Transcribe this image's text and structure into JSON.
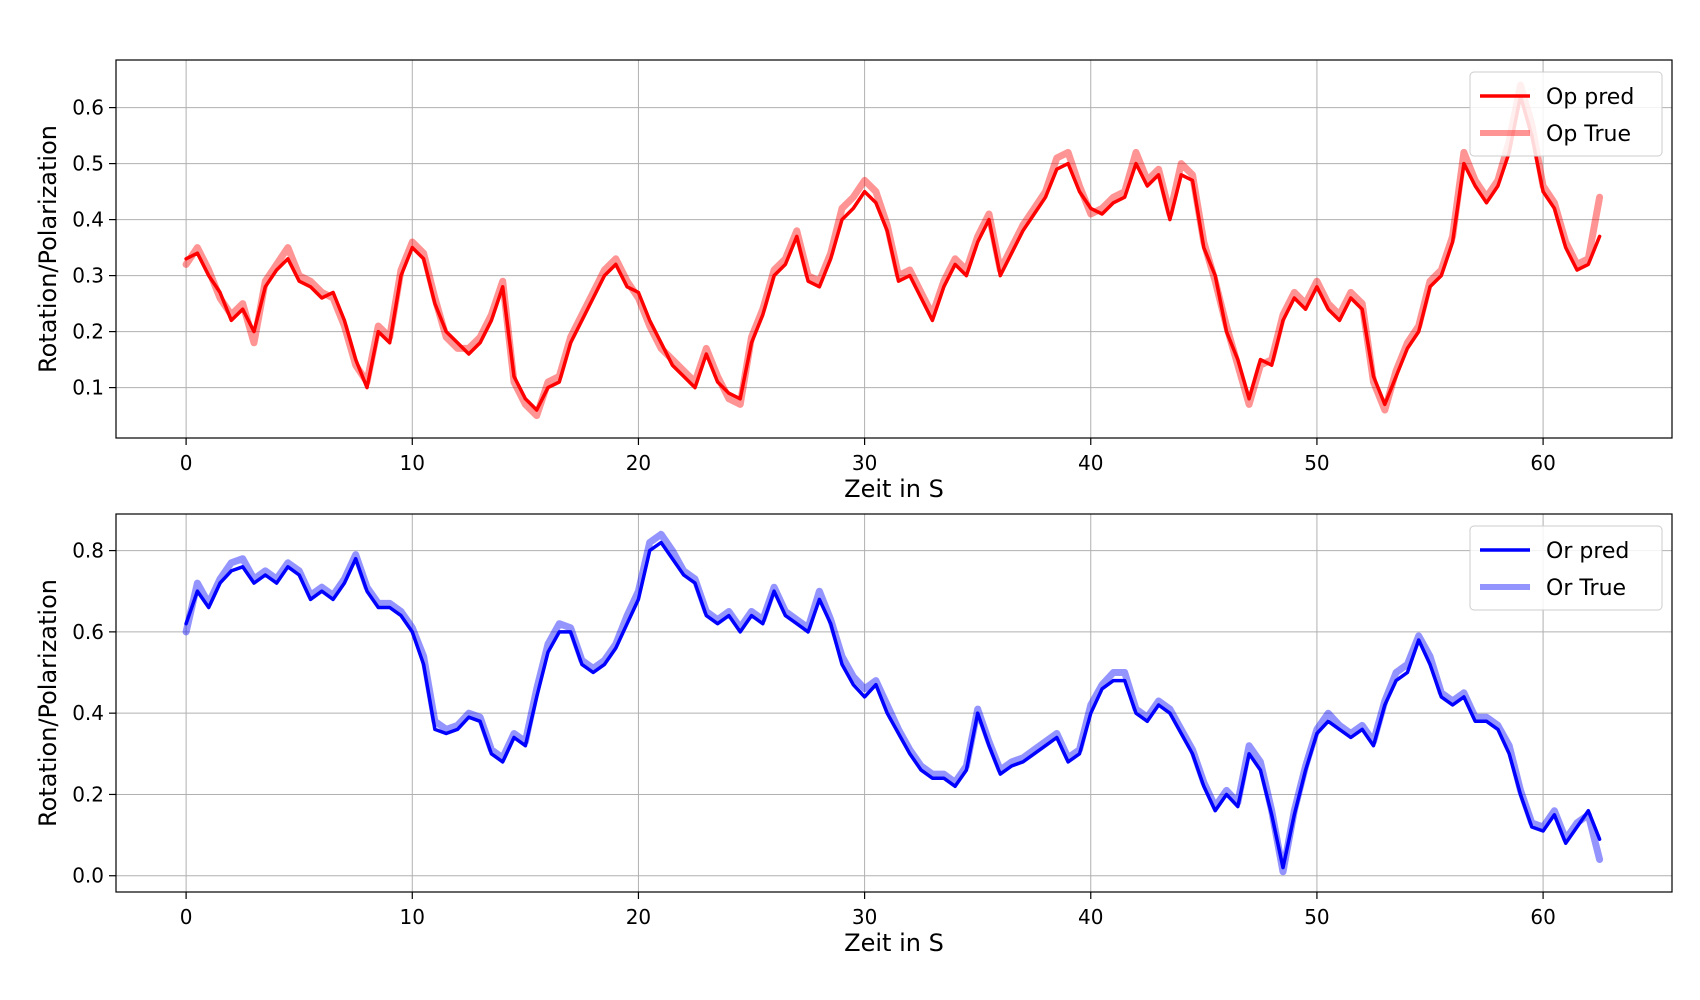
{
  "chart_data": [
    {
      "type": "line",
      "xlabel": "Zeit in S",
      "ylabel": "Rotation/Polarization",
      "xlim": [
        -3.1,
        65.7
      ],
      "ylim": [
        0.01,
        0.685
      ],
      "xticks": [
        0,
        10,
        20,
        30,
        40,
        50,
        60
      ],
      "yticks": [
        0.1,
        0.2,
        0.3,
        0.4,
        0.5,
        0.6
      ],
      "grid": true,
      "legend_position": "top-right",
      "series": [
        {
          "name": "Op pred",
          "color": "#ff0000",
          "opacity": 1.0,
          "x": [
            0,
            0.5,
            1,
            1.5,
            2,
            2.5,
            3,
            3.5,
            4,
            4.5,
            5,
            5.5,
            6,
            6.5,
            7,
            7.5,
            8,
            8.5,
            9,
            9.5,
            10,
            10.5,
            11,
            11.5,
            12,
            12.5,
            13,
            13.5,
            14,
            14.5,
            15,
            15.5,
            16,
            16.5,
            17,
            17.5,
            18,
            18.5,
            19,
            19.5,
            20,
            20.5,
            21,
            21.5,
            22,
            22.5,
            23,
            23.5,
            24,
            24.5,
            25,
            25.5,
            26,
            26.5,
            27,
            27.5,
            28,
            28.5,
            29,
            29.5,
            30,
            30.5,
            31,
            31.5,
            32,
            32.5,
            33,
            33.5,
            34,
            34.5,
            35,
            35.5,
            36,
            36.5,
            37,
            37.5,
            38,
            38.5,
            39,
            39.5,
            40,
            40.5,
            41,
            41.5,
            42,
            42.5,
            43,
            43.5,
            44,
            44.5,
            45,
            45.5,
            46,
            46.5,
            47,
            47.5,
            48,
            48.5,
            49,
            49.5,
            50,
            50.5,
            51,
            51.5,
            52,
            52.5,
            53,
            53.5,
            54,
            54.5,
            55,
            55.5,
            56,
            56.5,
            57,
            57.5,
            58,
            58.5,
            59,
            59.5,
            60,
            60.5,
            61,
            61.5,
            62,
            62.5
          ],
          "y": [
            0.33,
            0.34,
            0.3,
            0.27,
            0.22,
            0.24,
            0.2,
            0.28,
            0.31,
            0.33,
            0.29,
            0.28,
            0.26,
            0.27,
            0.22,
            0.15,
            0.1,
            0.2,
            0.18,
            0.3,
            0.35,
            0.33,
            0.25,
            0.2,
            0.18,
            0.16,
            0.18,
            0.22,
            0.28,
            0.12,
            0.08,
            0.06,
            0.1,
            0.11,
            0.18,
            0.22,
            0.26,
            0.3,
            0.32,
            0.28,
            0.27,
            0.22,
            0.18,
            0.14,
            0.12,
            0.1,
            0.16,
            0.11,
            0.09,
            0.08,
            0.18,
            0.23,
            0.3,
            0.32,
            0.37,
            0.29,
            0.28,
            0.33,
            0.4,
            0.42,
            0.45,
            0.43,
            0.38,
            0.29,
            0.3,
            0.26,
            0.22,
            0.28,
            0.32,
            0.3,
            0.36,
            0.4,
            0.3,
            0.34,
            0.38,
            0.41,
            0.44,
            0.49,
            0.5,
            0.45,
            0.42,
            0.41,
            0.43,
            0.44,
            0.5,
            0.46,
            0.48,
            0.4,
            0.48,
            0.47,
            0.35,
            0.3,
            0.2,
            0.15,
            0.08,
            0.15,
            0.14,
            0.22,
            0.26,
            0.24,
            0.28,
            0.24,
            0.22,
            0.26,
            0.24,
            0.12,
            0.07,
            0.12,
            0.17,
            0.2,
            0.28,
            0.3,
            0.36,
            0.5,
            0.46,
            0.43,
            0.46,
            0.52,
            0.62,
            0.55,
            0.45,
            0.42,
            0.35,
            0.31,
            0.32,
            0.37
          ]
        },
        {
          "name": "Op True",
          "color": "#ff0000",
          "opacity": 0.42,
          "x": [
            0,
            0.5,
            1,
            1.5,
            2,
            2.5,
            3,
            3.5,
            4,
            4.5,
            5,
            5.5,
            6,
            6.5,
            7,
            7.5,
            8,
            8.5,
            9,
            9.5,
            10,
            10.5,
            11,
            11.5,
            12,
            12.5,
            13,
            13.5,
            14,
            14.5,
            15,
            15.5,
            16,
            16.5,
            17,
            17.5,
            18,
            18.5,
            19,
            19.5,
            20,
            20.5,
            21,
            21.5,
            22,
            22.5,
            23,
            23.5,
            24,
            24.5,
            25,
            25.5,
            26,
            26.5,
            27,
            27.5,
            28,
            28.5,
            29,
            29.5,
            30,
            30.5,
            31,
            31.5,
            32,
            32.5,
            33,
            33.5,
            34,
            34.5,
            35,
            35.5,
            36,
            36.5,
            37,
            37.5,
            38,
            38.5,
            39,
            39.5,
            40,
            40.5,
            41,
            41.5,
            42,
            42.5,
            43,
            43.5,
            44,
            44.5,
            45,
            45.5,
            46,
            46.5,
            47,
            47.5,
            48,
            48.5,
            49,
            49.5,
            50,
            50.5,
            51,
            51.5,
            52,
            52.5,
            53,
            53.5,
            54,
            54.5,
            55,
            55.5,
            56,
            56.5,
            57,
            57.5,
            58,
            58.5,
            59,
            59.5,
            60,
            60.5,
            61,
            61.5,
            62,
            62.5
          ],
          "y": [
            0.32,
            0.35,
            0.31,
            0.26,
            0.23,
            0.25,
            0.18,
            0.29,
            0.32,
            0.35,
            0.3,
            0.29,
            0.27,
            0.26,
            0.21,
            0.14,
            0.11,
            0.21,
            0.19,
            0.31,
            0.36,
            0.34,
            0.26,
            0.19,
            0.17,
            0.17,
            0.19,
            0.23,
            0.29,
            0.11,
            0.07,
            0.05,
            0.11,
            0.12,
            0.19,
            0.23,
            0.27,
            0.31,
            0.33,
            0.29,
            0.26,
            0.21,
            0.17,
            0.15,
            0.13,
            0.11,
            0.17,
            0.12,
            0.08,
            0.07,
            0.19,
            0.24,
            0.31,
            0.33,
            0.38,
            0.3,
            0.29,
            0.34,
            0.42,
            0.44,
            0.47,
            0.45,
            0.39,
            0.3,
            0.31,
            0.27,
            0.23,
            0.29,
            0.33,
            0.31,
            0.37,
            0.41,
            0.31,
            0.35,
            0.39,
            0.42,
            0.45,
            0.51,
            0.52,
            0.46,
            0.41,
            0.42,
            0.44,
            0.45,
            0.52,
            0.47,
            0.49,
            0.41,
            0.5,
            0.48,
            0.36,
            0.29,
            0.21,
            0.14,
            0.07,
            0.14,
            0.15,
            0.23,
            0.27,
            0.25,
            0.29,
            0.25,
            0.23,
            0.27,
            0.25,
            0.11,
            0.06,
            0.13,
            0.18,
            0.21,
            0.29,
            0.31,
            0.37,
            0.52,
            0.47,
            0.44,
            0.47,
            0.54,
            0.64,
            0.57,
            0.46,
            0.43,
            0.36,
            0.32,
            0.33,
            0.44
          ]
        }
      ]
    },
    {
      "type": "line",
      "xlabel": "Zeit in S",
      "ylabel": "Rotation/Polarization",
      "xlim": [
        -3.1,
        65.7
      ],
      "ylim": [
        -0.04,
        0.89
      ],
      "xticks": [
        0,
        10,
        20,
        30,
        40,
        50,
        60
      ],
      "yticks": [
        0.0,
        0.2,
        0.4,
        0.6,
        0.8
      ],
      "grid": true,
      "legend_position": "top-right",
      "series": [
        {
          "name": "Or pred",
          "color": "#0000ff",
          "opacity": 1.0,
          "x": [
            0,
            0.5,
            1,
            1.5,
            2,
            2.5,
            3,
            3.5,
            4,
            4.5,
            5,
            5.5,
            6,
            6.5,
            7,
            7.5,
            8,
            8.5,
            9,
            9.5,
            10,
            10.5,
            11,
            11.5,
            12,
            12.5,
            13,
            13.5,
            14,
            14.5,
            15,
            15.5,
            16,
            16.5,
            17,
            17.5,
            18,
            18.5,
            19,
            19.5,
            20,
            20.5,
            21,
            21.5,
            22,
            22.5,
            23,
            23.5,
            24,
            24.5,
            25,
            25.5,
            26,
            26.5,
            27,
            27.5,
            28,
            28.5,
            29,
            29.5,
            30,
            30.5,
            31,
            31.5,
            32,
            32.5,
            33,
            33.5,
            34,
            34.5,
            35,
            35.5,
            36,
            36.5,
            37,
            37.5,
            38,
            38.5,
            39,
            39.5,
            40,
            40.5,
            41,
            41.5,
            42,
            42.5,
            43,
            43.5,
            44,
            44.5,
            45,
            45.5,
            46,
            46.5,
            47,
            47.5,
            48,
            48.5,
            49,
            49.5,
            50,
            50.5,
            51,
            51.5,
            52,
            52.5,
            53,
            53.5,
            54,
            54.5,
            55,
            55.5,
            56,
            56.5,
            57,
            57.5,
            58,
            58.5,
            59,
            59.5,
            60,
            60.5,
            61,
            61.5,
            62,
            62.5
          ],
          "y": [
            0.62,
            0.7,
            0.66,
            0.72,
            0.75,
            0.76,
            0.72,
            0.74,
            0.72,
            0.76,
            0.74,
            0.68,
            0.7,
            0.68,
            0.72,
            0.78,
            0.7,
            0.66,
            0.66,
            0.64,
            0.6,
            0.52,
            0.36,
            0.35,
            0.36,
            0.39,
            0.38,
            0.3,
            0.28,
            0.34,
            0.32,
            0.44,
            0.55,
            0.6,
            0.6,
            0.52,
            0.5,
            0.52,
            0.56,
            0.62,
            0.68,
            0.8,
            0.82,
            0.78,
            0.74,
            0.72,
            0.64,
            0.62,
            0.64,
            0.6,
            0.64,
            0.62,
            0.7,
            0.64,
            0.62,
            0.6,
            0.68,
            0.62,
            0.52,
            0.47,
            0.44,
            0.47,
            0.4,
            0.35,
            0.3,
            0.26,
            0.24,
            0.24,
            0.22,
            0.26,
            0.4,
            0.32,
            0.25,
            0.27,
            0.28,
            0.3,
            0.32,
            0.34,
            0.28,
            0.3,
            0.4,
            0.46,
            0.48,
            0.48,
            0.4,
            0.38,
            0.42,
            0.4,
            0.35,
            0.3,
            0.22,
            0.16,
            0.2,
            0.17,
            0.3,
            0.26,
            0.15,
            0.02,
            0.15,
            0.26,
            0.35,
            0.38,
            0.36,
            0.34,
            0.36,
            0.32,
            0.42,
            0.48,
            0.5,
            0.58,
            0.52,
            0.44,
            0.42,
            0.44,
            0.38,
            0.38,
            0.36,
            0.3,
            0.2,
            0.12,
            0.11,
            0.15,
            0.08,
            0.12,
            0.16,
            0.09
          ]
        },
        {
          "name": "Or True",
          "color": "#0000ff",
          "opacity": 0.42,
          "x": [
            0,
            0.5,
            1,
            1.5,
            2,
            2.5,
            3,
            3.5,
            4,
            4.5,
            5,
            5.5,
            6,
            6.5,
            7,
            7.5,
            8,
            8.5,
            9,
            9.5,
            10,
            10.5,
            11,
            11.5,
            12,
            12.5,
            13,
            13.5,
            14,
            14.5,
            15,
            15.5,
            16,
            16.5,
            17,
            17.5,
            18,
            18.5,
            19,
            19.5,
            20,
            20.5,
            21,
            21.5,
            22,
            22.5,
            23,
            23.5,
            24,
            24.5,
            25,
            25.5,
            26,
            26.5,
            27,
            27.5,
            28,
            28.5,
            29,
            29.5,
            30,
            30.5,
            31,
            31.5,
            32,
            32.5,
            33,
            33.5,
            34,
            34.5,
            35,
            35.5,
            36,
            36.5,
            37,
            37.5,
            38,
            38.5,
            39,
            39.5,
            40,
            40.5,
            41,
            41.5,
            42,
            42.5,
            43,
            43.5,
            44,
            44.5,
            45,
            45.5,
            46,
            46.5,
            47,
            47.5,
            48,
            48.5,
            49,
            49.5,
            50,
            50.5,
            51,
            51.5,
            52,
            52.5,
            53,
            53.5,
            54,
            54.5,
            55,
            55.5,
            56,
            56.5,
            57,
            57.5,
            58,
            58.5,
            59,
            59.5,
            60,
            60.5,
            61,
            61.5,
            62,
            62.5
          ],
          "y": [
            0.6,
            0.72,
            0.67,
            0.73,
            0.77,
            0.78,
            0.73,
            0.75,
            0.73,
            0.77,
            0.75,
            0.69,
            0.71,
            0.69,
            0.73,
            0.79,
            0.71,
            0.67,
            0.67,
            0.65,
            0.61,
            0.54,
            0.38,
            0.36,
            0.37,
            0.4,
            0.39,
            0.31,
            0.29,
            0.35,
            0.33,
            0.46,
            0.57,
            0.62,
            0.61,
            0.53,
            0.51,
            0.53,
            0.57,
            0.64,
            0.7,
            0.82,
            0.84,
            0.8,
            0.75,
            0.73,
            0.65,
            0.63,
            0.65,
            0.61,
            0.65,
            0.63,
            0.71,
            0.65,
            0.63,
            0.61,
            0.7,
            0.63,
            0.54,
            0.49,
            0.46,
            0.48,
            0.42,
            0.36,
            0.31,
            0.27,
            0.25,
            0.25,
            0.23,
            0.27,
            0.41,
            0.33,
            0.26,
            0.28,
            0.29,
            0.31,
            0.33,
            0.35,
            0.29,
            0.31,
            0.42,
            0.47,
            0.5,
            0.5,
            0.41,
            0.39,
            0.43,
            0.41,
            0.36,
            0.31,
            0.23,
            0.17,
            0.21,
            0.18,
            0.32,
            0.28,
            0.16,
            0.01,
            0.16,
            0.27,
            0.36,
            0.4,
            0.37,
            0.35,
            0.37,
            0.33,
            0.43,
            0.5,
            0.52,
            0.59,
            0.54,
            0.45,
            0.43,
            0.45,
            0.39,
            0.39,
            0.37,
            0.32,
            0.21,
            0.13,
            0.12,
            0.16,
            0.09,
            0.13,
            0.15,
            0.04
          ]
        }
      ]
    }
  ]
}
